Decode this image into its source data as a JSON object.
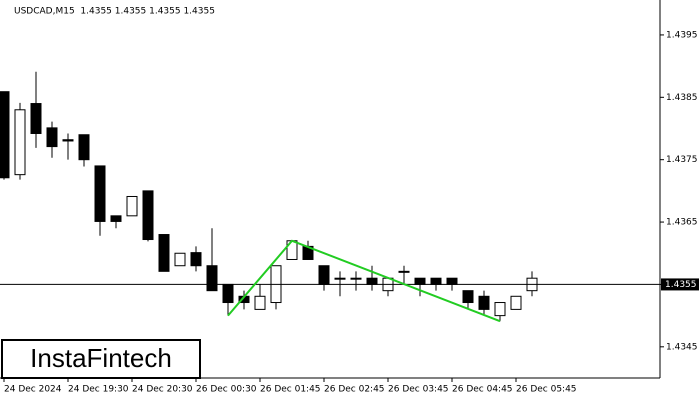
{
  "chart_data": {
    "type": "candlestick",
    "title": "USDCAD,M15  1.4355 1.4355 1.4355 1.4355",
    "categories": [
      "24 Dec 2024",
      null,
      null,
      null,
      "24 Dec 19:30",
      null,
      null,
      null,
      "24 Dec 20:30",
      null,
      null,
      null,
      "26 Dec 00:30",
      null,
      null,
      null,
      "26 Dec 01:45",
      null,
      null,
      null,
      "26 Dec 02:45",
      null,
      null,
      null,
      "26 Dec 03:45",
      null,
      null,
      null,
      "26 Dec 04:45",
      null,
      null,
      null,
      "26 Dec 05:45",
      null
    ],
    "open": [
      1.43859,
      1.43726,
      1.4384,
      1.43801,
      1.43782,
      1.4379,
      1.4374,
      1.4366,
      1.4366,
      1.437,
      1.4363,
      1.4358,
      1.43601,
      1.4358,
      1.4355,
      1.43531,
      1.4351,
      1.43521,
      1.4359,
      1.43611,
      1.4358,
      1.4356,
      1.4356,
      1.4356,
      1.4354,
      1.43571,
      1.4356,
      1.4356,
      1.4356,
      1.4354,
      1.43531,
      1.435,
      1.4351,
      1.4354
    ],
    "high": [
      1.43859,
      1.43841,
      1.43891,
      1.43811,
      1.43792,
      1.4379,
      1.4374,
      1.4366,
      1.43691,
      1.437,
      1.4363,
      1.436,
      1.43611,
      1.4364,
      1.4355,
      1.4354,
      1.4355,
      1.4358,
      1.4362,
      1.4362,
      1.4358,
      1.43571,
      1.43571,
      1.4358,
      1.4356,
      1.4358,
      1.4356,
      1.4356,
      1.4356,
      1.4354,
      1.4354,
      1.43521,
      1.43531,
      1.43571
    ],
    "low": [
      1.43718,
      1.43718,
      1.43769,
      1.43753,
      1.4375,
      1.43739,
      1.43628,
      1.4364,
      1.4366,
      1.43619,
      1.43571,
      1.4358,
      1.43571,
      1.4354,
      1.435,
      1.4351,
      1.4351,
      1.4351,
      1.4359,
      1.4359,
      1.4354,
      1.43531,
      1.4354,
      1.4354,
      1.43531,
      1.4355,
      1.43531,
      1.4354,
      1.4354,
      1.4351,
      1.435,
      1.43491,
      1.4351,
      1.43531
    ],
    "close": [
      1.43721,
      1.4383,
      1.43792,
      1.43771,
      1.4378,
      1.4375,
      1.43651,
      1.43651,
      1.43691,
      1.43622,
      1.43571,
      1.436,
      1.4358,
      1.4354,
      1.43521,
      1.43521,
      1.43531,
      1.4358,
      1.4362,
      1.4359,
      1.4355,
      1.43559,
      1.4356,
      1.4355,
      1.4356,
      1.4357,
      1.4355,
      1.4355,
      1.4355,
      1.43521,
      1.4351,
      1.43521,
      1.43531,
      1.4356
    ],
    "up_color": "#ffffff",
    "down_color": "#000000",
    "ylim": [
      1.434,
      1.44006
    ],
    "yticks": [
      1.4345,
      1.4355,
      1.4365,
      1.4375,
      1.4385,
      1.4395
    ],
    "last_price": 1.4355,
    "pattern": {
      "color": "#22cc22",
      "x": [
        14,
        18,
        31
      ],
      "y": [
        1.435,
        1.4362,
        1.43491
      ]
    }
  },
  "logo": {
    "text": "InstaFintech"
  }
}
